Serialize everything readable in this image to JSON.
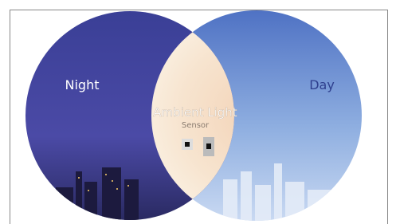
{
  "diagram": {
    "left_label": "Night",
    "right_label": "Day",
    "center_title": "Ambient Light",
    "center_subtitle": "Sensor"
  }
}
